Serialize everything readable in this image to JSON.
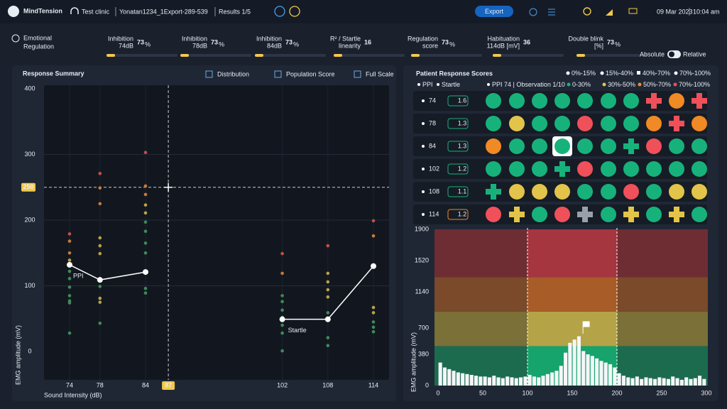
{
  "header": {
    "brand": "MindTension",
    "clinic": "Test clinic",
    "file": "Yonatan1234_1Export-289-539",
    "results": "Results 1/5",
    "export": "Export",
    "date": "09 Mar 2023",
    "time": "10:04 am"
  },
  "profile": {
    "title": "Emotional",
    "subtitle": "Regulation"
  },
  "metrics": [
    {
      "label": [
        "Inhibition",
        "74dB"
      ],
      "value": "73",
      "unit": "%"
    },
    {
      "label": [
        "Inhibition",
        "78dB"
      ],
      "value": "73",
      "unit": "%"
    },
    {
      "label": [
        "Inhibition",
        "84dB"
      ],
      "value": "73",
      "unit": "%"
    },
    {
      "label": [
        "R² / Startle",
        "linearity"
      ],
      "value": "16"
    },
    {
      "label": [
        "Regulation",
        "score"
      ],
      "value": "73",
      "unit": "%"
    },
    {
      "label": [
        "Habituation",
        "114dB [mV]"
      ],
      "value": "36"
    },
    {
      "label": [
        "Double blink",
        "[%]"
      ],
      "value": "73",
      "unit": "%"
    }
  ],
  "toggle": {
    "left": "Absolute",
    "right": "Relative"
  },
  "response_summary": {
    "title": "Response Summary",
    "tools": [
      "Distribution",
      "Population Score",
      "Full Scale"
    ],
    "chart": {
      "type": "scatter",
      "ylabel": "EMG amplitude (mV)",
      "xlabel": "Sound Intensity (dB)",
      "xlim": [
        74,
        114
      ],
      "ylim": [
        0,
        400
      ],
      "xticks": [
        74,
        78,
        84,
        102,
        108,
        114
      ],
      "yticks": [
        0,
        100,
        200,
        300,
        400
      ],
      "crosshair": {
        "x": 87,
        "y": 250
      },
      "lines": [
        {
          "name": "PPI",
          "x": [
            74,
            78,
            84
          ],
          "values": [
            132,
            109,
            121
          ]
        },
        {
          "name": "Startle",
          "x": [
            102,
            108,
            114
          ],
          "values": [
            49,
            49,
            130
          ]
        }
      ],
      "columns": [
        {
          "x": 74,
          "values": [
            179,
            168,
            150,
            139,
            122,
            111,
            98,
            85,
            77,
            74,
            28
          ],
          "colors": [
            "#c0504d",
            "#c97a3a",
            "#c97a3a",
            "#b8a24a",
            "#3f8a5c",
            "#3f8a5c",
            "#3f8a5c",
            "#3f8a5c",
            "#3f8a5c",
            "#3f8a5c",
            "#3f8a5c"
          ]
        },
        {
          "x": 78,
          "values": [
            271,
            249,
            225,
            173,
            161,
            149,
            99,
            81,
            75,
            43
          ],
          "colors": [
            "#c0504d",
            "#c97a3a",
            "#c97a3a",
            "#b8a24a",
            "#b8a24a",
            "#b8a24a",
            "#3f8a5c",
            "#b8a24a",
            "#b8a24a",
            "#3f8a5c"
          ]
        },
        {
          "x": 84,
          "values": [
            303,
            252,
            239,
            223,
            211,
            197,
            183,
            165,
            150,
            96,
            89
          ],
          "colors": [
            "#c0504d",
            "#c97a3a",
            "#c97a3a",
            "#b8a24a",
            "#b8a24a",
            "#3f8a5c",
            "#3f8a5c",
            "#3f8a5c",
            "#3f8a5c",
            "#3f8a5c",
            "#3f8a5c"
          ]
        },
        {
          "x": 102,
          "values": [
            149,
            119,
            85,
            76,
            63,
            52,
            40,
            28,
            1
          ],
          "colors": [
            "#c0504d",
            "#c97a3a",
            "#3f8a5c",
            "#3f8a5c",
            "#3f8a5c",
            "#3f8a5c",
            "#3f8a5c",
            "#3f8a5c",
            "#3f8a5c"
          ]
        },
        {
          "x": 108,
          "values": [
            161,
            119,
            106,
            94,
            83,
            59,
            21,
            9
          ],
          "colors": [
            "#c0504d",
            "#b8a24a",
            "#b8a24a",
            "#b8a24a",
            "#b8a24a",
            "#3f8a5c",
            "#3f8a5c",
            "#3f8a5c"
          ]
        },
        {
          "x": 114,
          "values": [
            199,
            176,
            67,
            59,
            45,
            37,
            30
          ],
          "colors": [
            "#c0504d",
            "#c97a3a",
            "#b8a24a",
            "#b8a24a",
            "#3f8a5c",
            "#3f8a5c",
            "#3f8a5c"
          ]
        }
      ]
    }
  },
  "patient_scores": {
    "title": "Patient Response Scores",
    "legend_top": [
      "0%-15%",
      "15%-40%",
      "40%-70%",
      "70%-100%"
    ],
    "legend_bottom": [
      "PPI",
      "Startle",
      "PPI 74 | Observation 1/10",
      "0-30%",
      "30%-50%",
      "50%-70%",
      "70%-100%"
    ],
    "legend_colors": [
      "#17b27b",
      "#e3c44a",
      "#f08a24",
      "#f0505a"
    ],
    "rows": [
      {
        "label": "74",
        "badge": "1.6",
        "badge_color": "#17b27b",
        "colors": [
          "#17b27b",
          "#17b27b",
          "#17b27b",
          "#17b27b",
          "#17b27b",
          "#17b27b",
          "#17b27b",
          "#f0505a",
          "#f08a24",
          "#f0505a"
        ],
        "shapes": [
          "circle",
          "circle",
          "circle",
          "circle",
          "circle",
          "circle",
          "circle",
          "cross",
          "circle",
          "cross"
        ]
      },
      {
        "label": "78",
        "badge": "1.3",
        "badge_color": "#17b27b",
        "colors": [
          "#17b27b",
          "#e3c44a",
          "#17b27b",
          "#17b27b",
          "#f0505a",
          "#17b27b",
          "#17b27b",
          "#f08a24",
          "#f0505a",
          "#f08a24"
        ],
        "shapes": [
          "circle",
          "circle",
          "circle",
          "circle",
          "circle",
          "circle",
          "circle",
          "circle",
          "cross",
          "circle"
        ]
      },
      {
        "label": "84",
        "badge": "1.3",
        "badge_color": "#17b27b",
        "colors": [
          "#f08a24",
          "#17b27b",
          "#17b27b",
          "#17b27b",
          "#17b27b",
          "#17b27b",
          "#17b27b",
          "#f0505a",
          "#17b27b",
          "#17b27b"
        ],
        "shapes": [
          "circle",
          "circle",
          "circle",
          "selected",
          "circle",
          "circle",
          "cross",
          "circle",
          "circle",
          "circle"
        ]
      },
      {
        "label": "102",
        "badge": "1.2",
        "badge_color": "#17b27b",
        "colors": [
          "#17b27b",
          "#17b27b",
          "#17b27b",
          "#17b27b",
          "#f0505a",
          "#17b27b",
          "#17b27b",
          "#17b27b",
          "#17b27b",
          "#17b27b"
        ],
        "shapes": [
          "circle",
          "circle",
          "circle",
          "cross",
          "circle",
          "circle",
          "circle",
          "circle",
          "circle",
          "circle"
        ]
      },
      {
        "label": "108",
        "badge": "1.1",
        "badge_color": "#17b27b",
        "colors": [
          "#17b27b",
          "#e3c44a",
          "#e3c44a",
          "#e3c44a",
          "#17b27b",
          "#17b27b",
          "#f0505a",
          "#17b27b",
          "#e3c44a",
          "#e3c44a"
        ],
        "shapes": [
          "cross",
          "circle",
          "circle",
          "circle",
          "circle",
          "circle",
          "circle",
          "circle",
          "circle",
          "circle"
        ]
      },
      {
        "label": "114",
        "badge": "1.2",
        "badge_color": "#f08a24",
        "colors": [
          "#f0505a",
          "#e3c44a",
          "#17b27b",
          "#f0505a",
          "#9aa0a8",
          "#17b27b",
          "#e3c44a",
          "#17b27b",
          "#e3c44a",
          "#17b27b"
        ],
        "shapes": [
          "circle",
          "cross",
          "circle",
          "circle",
          "cross",
          "circle",
          "cross",
          "circle",
          "cross",
          "circle"
        ]
      }
    ],
    "histogram": {
      "type": "histogram",
      "ylabel": "EMG amplitude (mV)",
      "xlim": [
        0,
        300
      ],
      "ylim": [
        0,
        1900
      ],
      "xticks": [
        0,
        50,
        100,
        150,
        200,
        250,
        300
      ],
      "yticks": [
        0,
        380,
        700,
        1140,
        1520,
        1900
      ],
      "highlight": [
        100,
        200
      ],
      "bands": [
        {
          "from": 0,
          "to": 480,
          "color": "#1c6b4f",
          "highlight": "#17a36c"
        },
        {
          "from": 480,
          "to": 900,
          "color": "#7a7038",
          "highlight": "#b4a347"
        },
        {
          "from": 900,
          "to": 1320,
          "color": "#7a4a2a",
          "highlight": "#a85c28"
        },
        {
          "from": 1320,
          "to": 1900,
          "color": "#6e2d33",
          "highlight": "#a5353f"
        }
      ],
      "bins": [
        0,
        5,
        10,
        15,
        20,
        25,
        30,
        35,
        40,
        45,
        50,
        55,
        60,
        65,
        70,
        75,
        80,
        85,
        90,
        95,
        100,
        105,
        110,
        115,
        120,
        125,
        130,
        135,
        140,
        145,
        150,
        155,
        160,
        165,
        170,
        175,
        180,
        185,
        190,
        195,
        200,
        205,
        210,
        215,
        220,
        225,
        230,
        235,
        240,
        245,
        250,
        255,
        260,
        265,
        270,
        275,
        280,
        285,
        290,
        295,
        300
      ],
      "counts": [
        280,
        220,
        200,
        180,
        160,
        150,
        140,
        130,
        120,
        110,
        110,
        100,
        120,
        100,
        90,
        110,
        100,
        90,
        100,
        110,
        130,
        110,
        100,
        120,
        140,
        160,
        180,
        240,
        400,
        520,
        560,
        600,
        420,
        380,
        360,
        330,
        300,
        280,
        260,
        220,
        150,
        120,
        100,
        90,
        110,
        80,
        100,
        90,
        80,
        100,
        90,
        80,
        110,
        90,
        70,
        100,
        80,
        90,
        120,
        80
      ]
    }
  }
}
